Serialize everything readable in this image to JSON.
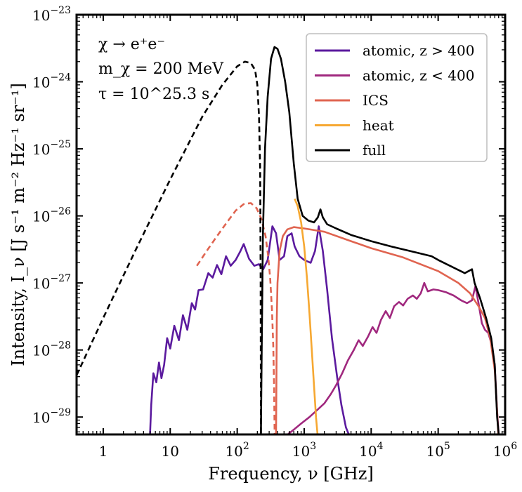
{
  "chart_data": {
    "type": "line",
    "xlabel": "Frequency, ν [GHz]",
    "ylabel": "Intensity, I_ν [J s⁻¹ m⁻² Hz⁻¹ sr⁻¹]",
    "xscale": "log",
    "yscale": "log",
    "xlim": [
      0.4,
      1000000
    ],
    "ylim": [
      5.5e-30,
      1e-23
    ],
    "xticks": [
      {
        "value": 1,
        "base": "1",
        "exp": ""
      },
      {
        "value": 10,
        "base": "10",
        "exp": ""
      },
      {
        "value": 100,
        "base": "10",
        "exp": "2"
      },
      {
        "value": 1000,
        "base": "10",
        "exp": "3"
      },
      {
        "value": 10000,
        "base": "10",
        "exp": "4"
      },
      {
        "value": 100000,
        "base": "10",
        "exp": "5"
      },
      {
        "value": 1000000,
        "base": "10",
        "exp": "6"
      }
    ],
    "yticks": [
      {
        "value": 1e-23,
        "base": "10",
        "exp": "−23"
      },
      {
        "value": 1e-24,
        "base": "10",
        "exp": "−24"
      },
      {
        "value": 1e-25,
        "base": "10",
        "exp": "−25"
      },
      {
        "value": 1e-26,
        "base": "10",
        "exp": "−26"
      },
      {
        "value": 1e-27,
        "base": "10",
        "exp": "−27"
      },
      {
        "value": 1e-28,
        "base": "10",
        "exp": "−28"
      },
      {
        "value": 1e-29,
        "base": "10",
        "exp": "−29"
      }
    ],
    "annotations": [
      {
        "text": "χ → e⁺e⁻"
      },
      {
        "text": "m_χ = 200 MeV"
      },
      {
        "text": "τ = 10^25.3 s"
      }
    ],
    "legend_position": "top-right",
    "series": [
      {
        "name": "atomic, z > 400",
        "color": "#5b1a9e",
        "style": "solid",
        "points": [
          [
            5.0,
            5.6e-30
          ],
          [
            5.2,
            1.5e-29
          ],
          [
            5.6,
            4.5e-29
          ],
          [
            6.2,
            3.3e-29
          ],
          [
            6.8,
            6.5e-29
          ],
          [
            7.4,
            3.8e-29
          ],
          [
            8.1,
            6e-29
          ],
          [
            9.0,
            1.5e-28
          ],
          [
            10.0,
            1.05e-28
          ],
          [
            11.5,
            2.3e-28
          ],
          [
            13.5,
            1.4e-28
          ],
          [
            15.5,
            3.3e-28
          ],
          [
            18.0,
            2e-28
          ],
          [
            21.0,
            5e-28
          ],
          [
            23.5,
            4e-28
          ],
          [
            26.5,
            7.8e-28
          ],
          [
            31.0,
            8e-28
          ],
          [
            37.0,
            1.4e-27
          ],
          [
            43.0,
            1.2e-27
          ],
          [
            50.0,
            1.85e-27
          ],
          [
            58.0,
            1.35e-27
          ],
          [
            68.0,
            2.5e-27
          ],
          [
            80.0,
            1.8e-27
          ],
          [
            95.0,
            2.2e-27
          ],
          [
            112.0,
            3e-27
          ],
          [
            125.0,
            3.8e-27
          ],
          [
            150.0,
            2.3e-27
          ],
          [
            180.0,
            1.8e-27
          ],
          [
            210.0,
            1.9e-27
          ],
          [
            245.0,
            1.6e-27
          ],
          [
            285.0,
            2.2e-27
          ],
          [
            335.0,
            7e-27
          ],
          [
            380.0,
            5.5e-27
          ],
          [
            430.0,
            2.2e-27
          ],
          [
            500.0,
            2.5e-27
          ],
          [
            560.0,
            5e-27
          ],
          [
            650.0,
            5.5e-27
          ],
          [
            720.0,
            3.5e-27
          ],
          [
            850.0,
            2.5e-27
          ],
          [
            1000.0,
            2.2e-27
          ],
          [
            1250.0,
            2e-27
          ],
          [
            1450.0,
            3e-27
          ],
          [
            1650.0,
            7e-27
          ],
          [
            1900.0,
            3e-27
          ],
          [
            2200.0,
            8e-28
          ],
          [
            2600.0,
            1.5e-28
          ],
          [
            3100.0,
            4e-29
          ],
          [
            3600.0,
            1.5e-29
          ],
          [
            4200.0,
            7e-30
          ],
          [
            4600.0,
            5.6e-30
          ]
        ]
      },
      {
        "name": "atomic, z < 400",
        "color": "#a0287e",
        "style": "solid",
        "points": [
          [
            580,
            5.6e-30
          ],
          [
            700,
            6.5e-30
          ],
          [
            900,
            8e-30
          ],
          [
            1200,
            1e-29
          ],
          [
            1600,
            1.3e-29
          ],
          [
            2000,
            1.6e-29
          ],
          [
            2500,
            2.2e-29
          ],
          [
            3000,
            3e-29
          ],
          [
            3700,
            4.5e-29
          ],
          [
            4500,
            7e-29
          ],
          [
            5500,
            1e-28
          ],
          [
            6500,
            1.4e-28
          ],
          [
            7500,
            1.15e-28
          ],
          [
            9000,
            1.6e-28
          ],
          [
            10500,
            2.2e-28
          ],
          [
            12000,
            1.8e-28
          ],
          [
            14000,
            2.8e-28
          ],
          [
            16500,
            3.8e-28
          ],
          [
            19000,
            3e-28
          ],
          [
            22000,
            4.5e-28
          ],
          [
            26000,
            5.2e-28
          ],
          [
            30000,
            4.6e-28
          ],
          [
            35000,
            5.8e-28
          ],
          [
            42000,
            6.5e-28
          ],
          [
            48000,
            5.8e-28
          ],
          [
            55000,
            7e-28
          ],
          [
            62000,
            1e-27
          ],
          [
            70000,
            7.5e-28
          ],
          [
            85000,
            8e-28
          ],
          [
            100000,
            7.8e-28
          ],
          [
            130000,
            7.3e-28
          ],
          [
            170000,
            6.5e-28
          ],
          [
            220000,
            5.5e-28
          ],
          [
            270000,
            5e-28
          ],
          [
            320000,
            5.5e-28
          ],
          [
            360000,
            9e-28
          ],
          [
            400000,
            5e-28
          ],
          [
            450000,
            2.5e-28
          ],
          [
            500000,
            2e-28
          ],
          [
            560000,
            1.8e-28
          ],
          [
            630000,
            1.2e-28
          ],
          [
            700000,
            6e-29
          ],
          [
            760000,
            1.2e-29
          ],
          [
            800000,
            5.6e-30
          ]
        ]
      },
      {
        "name": "ICS",
        "color": "#e06450",
        "style": "dashed",
        "points": [
          [
            25,
            1.8e-27
          ],
          [
            35,
            3e-27
          ],
          [
            50,
            5e-27
          ],
          [
            70,
            8e-27
          ],
          [
            95,
            1.2e-26
          ],
          [
            125,
            1.5e-26
          ],
          [
            160,
            1.55e-26
          ],
          [
            195,
            1.3e-26
          ],
          [
            230,
            9e-27
          ],
          [
            265,
            5e-27
          ],
          [
            290,
            2.5e-27
          ],
          [
            310,
            1.2e-27
          ],
          [
            330,
            4e-28
          ],
          [
            345,
            1.2e-28
          ],
          [
            355,
            3e-29
          ],
          [
            362,
            5.6e-30
          ]
        ]
      },
      {
        "name": "ICS",
        "color": "#e06450",
        "style": "solid",
        "points": [
          [
            380,
            5.6e-30
          ],
          [
            385,
            3e-29
          ],
          [
            390,
            3e-28
          ],
          [
            400,
            1e-27
          ],
          [
            430,
            3e-27
          ],
          [
            480,
            5e-27
          ],
          [
            560,
            6.3e-27
          ],
          [
            700,
            6.8e-27
          ],
          [
            1000,
            6.5e-27
          ],
          [
            2000,
            5.8e-27
          ],
          [
            5000,
            4.2e-27
          ],
          [
            10000,
            3.3e-27
          ],
          [
            30000,
            2.4e-27
          ],
          [
            100000,
            1.5e-27
          ],
          [
            200000,
            1e-27
          ],
          [
            300000,
            7e-28
          ],
          [
            400000,
            4.5e-28
          ],
          [
            500000,
            3e-28
          ],
          [
            600000,
            1.5e-28
          ],
          [
            700000,
            5e-29
          ],
          [
            760000,
            1.2e-29
          ],
          [
            790000,
            5.6e-30
          ]
        ]
      },
      {
        "name": "heat",
        "color": "#f6a832",
        "style": "solid",
        "points": [
          [
            720,
            1.8e-26
          ],
          [
            800,
            1.4e-26
          ],
          [
            900,
            8e-27
          ],
          [
            1000,
            3.5e-27
          ],
          [
            1100,
            1.2e-27
          ],
          [
            1200,
            3.5e-28
          ],
          [
            1300,
            1e-28
          ],
          [
            1400,
            3e-29
          ],
          [
            1500,
            1e-29
          ],
          [
            1580,
            5.6e-30
          ]
        ]
      },
      {
        "name": "full",
        "color": "#000000",
        "style": "dashed",
        "points": [
          [
            0.4,
            4.2e-29
          ],
          [
            1,
            3e-28
          ],
          [
            3,
            3e-27
          ],
          [
            10,
            3.5e-26
          ],
          [
            30,
            3e-25
          ],
          [
            60,
            9e-25
          ],
          [
            100,
            1.7e-24
          ],
          [
            130,
            2e-24
          ],
          [
            160,
            1.9e-24
          ],
          [
            185,
            1.5e-24
          ],
          [
            200,
            9e-25
          ],
          [
            212,
            3e-25
          ],
          [
            220,
            5e-26
          ],
          [
            224,
            1e-27
          ],
          [
            226,
            5.6e-30
          ]
        ]
      },
      {
        "name": "full",
        "color": "#000000",
        "style": "solid",
        "points": [
          [
            226,
            5.6e-30
          ],
          [
            232,
            1e-28
          ],
          [
            242,
            5e-27
          ],
          [
            260,
            1e-25
          ],
          [
            285,
            6e-25
          ],
          [
            320,
            2.2e-24
          ],
          [
            360,
            3.3e-24
          ],
          [
            400,
            3.1e-24
          ],
          [
            450,
            2.2e-24
          ],
          [
            520,
            1e-24
          ],
          [
            600,
            3.5e-25
          ],
          [
            700,
            6e-26
          ],
          [
            800,
            1.8e-26
          ],
          [
            950,
            1e-26
          ],
          [
            1150,
            8.5e-27
          ],
          [
            1400,
            8e-27
          ],
          [
            1600,
            9.5e-27
          ],
          [
            1750,
            1.25e-26
          ],
          [
            1900,
            9.5e-27
          ],
          [
            2200,
            7.5e-27
          ],
          [
            3000,
            6.5e-27
          ],
          [
            5000,
            5.2e-27
          ],
          [
            10000,
            4.2e-27
          ],
          [
            20000,
            3.5e-27
          ],
          [
            50000,
            2.8e-27
          ],
          [
            80000,
            2.5e-27
          ],
          [
            100000,
            2.2e-27
          ],
          [
            150000,
            1.8e-27
          ],
          [
            250000,
            1.4e-27
          ],
          [
            320000,
            1.6e-27
          ],
          [
            350000,
            1e-27
          ],
          [
            420000,
            6e-28
          ],
          [
            520000,
            3e-28
          ],
          [
            620000,
            1.5e-28
          ],
          [
            700000,
            6e-29
          ],
          [
            760000,
            1e-29
          ],
          [
            800000,
            5.6e-30
          ]
        ]
      }
    ],
    "legend": [
      {
        "name": "atomic, z > 400",
        "color": "#5b1a9e"
      },
      {
        "name": "atomic, z < 400",
        "color": "#a0287e"
      },
      {
        "name": "ICS",
        "color": "#e06450"
      },
      {
        "name": "heat",
        "color": "#f6a832"
      },
      {
        "name": "full",
        "color": "#000000"
      }
    ]
  }
}
